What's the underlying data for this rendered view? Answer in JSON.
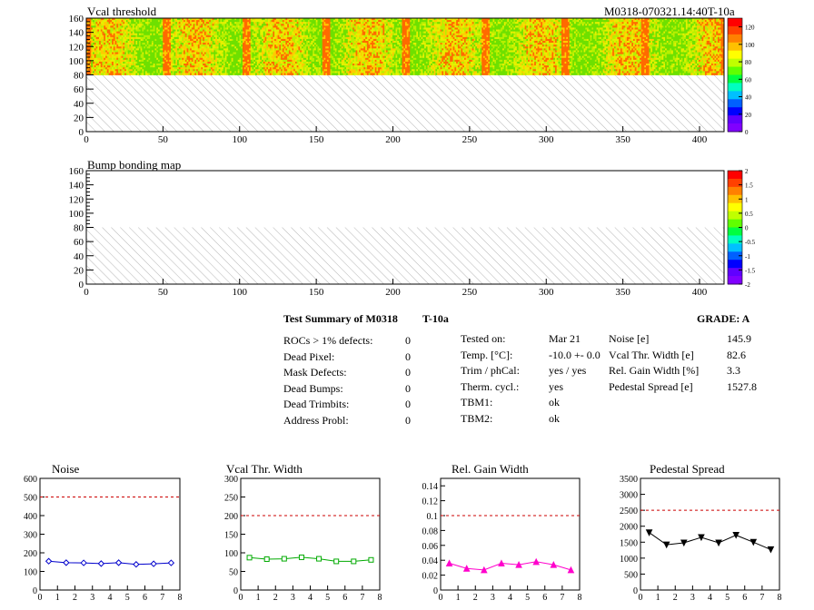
{
  "map1": {
    "title": "Vcal threshold",
    "module_id": "M0318-070321.14:40T-10a",
    "y_ticks": [
      "0",
      "20",
      "40",
      "60",
      "80",
      "100",
      "120",
      "140",
      "160"
    ],
    "x_ticks": [
      "0",
      "50",
      "100",
      "150",
      "200",
      "250",
      "300",
      "350",
      "400"
    ],
    "palette_ticks": [
      "0",
      "20",
      "40",
      "60",
      "80",
      "100",
      "120"
    ]
  },
  "map2": {
    "title": "Bump bonding map",
    "y_ticks": [
      "0",
      "20",
      "40",
      "60",
      "80",
      "100",
      "120",
      "140",
      "160"
    ],
    "x_ticks": [
      "0",
      "50",
      "100",
      "150",
      "200",
      "250",
      "300",
      "350",
      "400"
    ],
    "palette_ticks": [
      "-2",
      "-1.5",
      "-1",
      "-0.5",
      "0",
      "0.5",
      "1",
      "1.5",
      "2"
    ]
  },
  "summary": {
    "heading": "Test Summary of M0318",
    "temp_label": "T-10a",
    "grade": "GRADE:  A",
    "defects": [
      {
        "label": "ROCs > 1% defects:",
        "value": "0"
      },
      {
        "label": "Dead Pixel:",
        "value": "0"
      },
      {
        "label": "Mask Defects:",
        "value": "0"
      },
      {
        "label": "Dead Bumps:",
        "value": "0"
      },
      {
        "label": "Dead Trimbits:",
        "value": "0"
      },
      {
        "label": "Address Probl:",
        "value": "0"
      }
    ],
    "conditions": [
      {
        "label": "Tested on:",
        "value": "Mar 21"
      },
      {
        "label": "Temp. [°C]:",
        "value": "-10.0 +- 0.0"
      },
      {
        "label": "Trim / phCal:",
        "value": "yes / yes"
      },
      {
        "label": "Therm. cycl.:",
        "value": "yes"
      },
      {
        "label": "TBM1:",
        "value": "ok"
      },
      {
        "label": "TBM2:",
        "value": "ok"
      }
    ],
    "results": [
      {
        "label": "Noise [e]",
        "value": "145.9"
      },
      {
        "label": "Vcal Thr. Width [e]",
        "value": "82.6"
      },
      {
        "label": "Rel. Gain Width [%]",
        "value": "3.3"
      },
      {
        "label": "Pedestal Spread [e]",
        "value": "1527.8"
      }
    ]
  },
  "chart_data": [
    {
      "type": "line",
      "title": "Noise",
      "x": [
        0.5,
        1.5,
        2.5,
        3.5,
        4.5,
        5.5,
        6.5,
        7.5
      ],
      "values": [
        155,
        147,
        146,
        142,
        147,
        138,
        141,
        146
      ],
      "xlim": [
        0,
        8
      ],
      "ylim": [
        0,
        600
      ],
      "y_ticks": [
        0,
        100,
        200,
        300,
        400,
        500,
        600
      ],
      "x_ticks": [
        0,
        1,
        2,
        3,
        4,
        5,
        6,
        7,
        8
      ],
      "threshold": 500,
      "color": "#0000cc",
      "marker": "diamond"
    },
    {
      "type": "line",
      "title": "Vcal Thr. Width",
      "x": [
        0.5,
        1.5,
        2.5,
        3.5,
        4.5,
        5.5,
        6.5,
        7.5
      ],
      "values": [
        87,
        83,
        84,
        88,
        84,
        77,
        77,
        81
      ],
      "xlim": [
        0,
        8
      ],
      "ylim": [
        0,
        300
      ],
      "y_ticks": [
        0,
        50,
        100,
        150,
        200,
        250,
        300
      ],
      "x_ticks": [
        0,
        1,
        2,
        3,
        4,
        5,
        6,
        7,
        8
      ],
      "threshold": 200,
      "color": "#00aa00",
      "marker": "square"
    },
    {
      "type": "line",
      "title": "Rel. Gain Width",
      "x": [
        0.5,
        1.5,
        2.5,
        3.5,
        4.5,
        5.5,
        6.5,
        7.5
      ],
      "values": [
        0.036,
        0.029,
        0.027,
        0.036,
        0.034,
        0.038,
        0.034,
        0.027
      ],
      "xlim": [
        0,
        8
      ],
      "ylim": [
        0,
        0.15
      ],
      "y_ticks": [
        0,
        0.02,
        0.04,
        0.06,
        0.08,
        0.1,
        0.12,
        0.14
      ],
      "x_ticks": [
        0,
        1,
        2,
        3,
        4,
        5,
        6,
        7,
        8
      ],
      "threshold": 0.1,
      "color": "#ff00cc",
      "marker": "triangle-up"
    },
    {
      "type": "line",
      "title": "Pedestal Spread",
      "x": [
        0.5,
        1.5,
        2.5,
        3.5,
        4.5,
        5.5,
        6.5,
        7.5
      ],
      "values": [
        1800,
        1420,
        1480,
        1650,
        1480,
        1720,
        1500,
        1270
      ],
      "xlim": [
        0,
        8
      ],
      "ylim": [
        0,
        3500
      ],
      "y_ticks": [
        0,
        500,
        1000,
        1500,
        2000,
        2500,
        3000,
        3500
      ],
      "x_ticks": [
        0,
        1,
        2,
        3,
        4,
        5,
        6,
        7,
        8
      ],
      "threshold": 2500,
      "color": "#000000",
      "marker": "triangle-down"
    }
  ]
}
